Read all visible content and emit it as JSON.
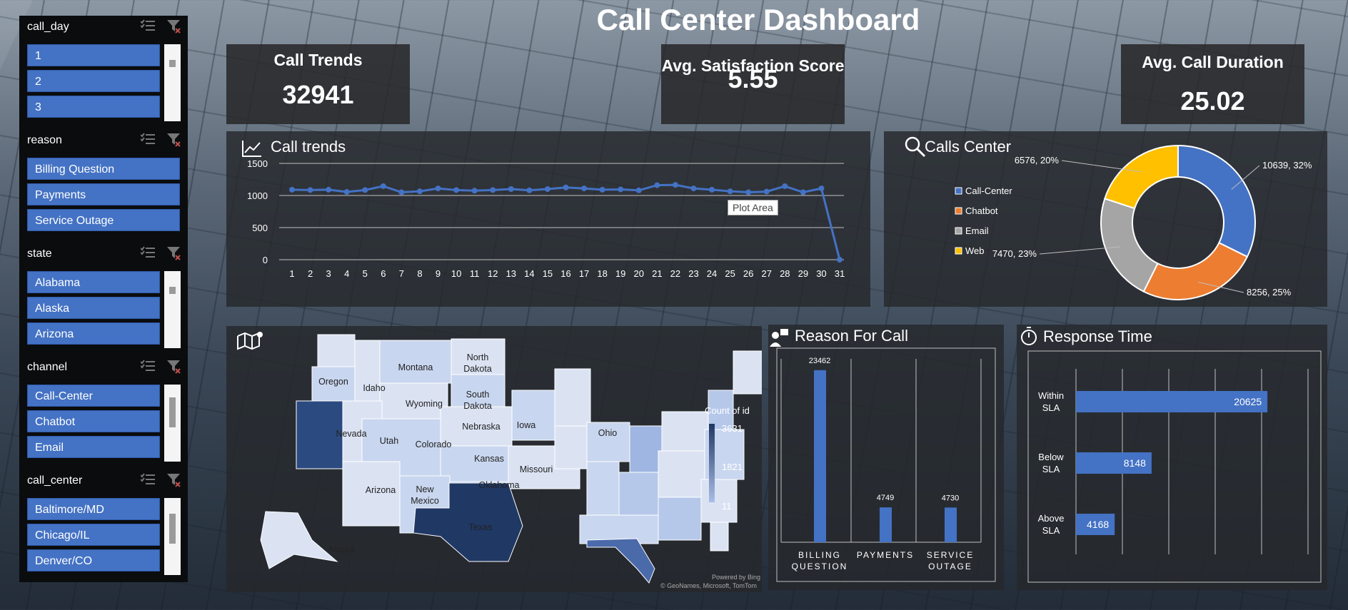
{
  "title": "Call Center Dashboard",
  "slicers": [
    {
      "name": "call_day",
      "items": [
        "1",
        "2",
        "3"
      ]
    },
    {
      "name": "reason",
      "items": [
        "Billing Question",
        "Payments",
        "Service Outage"
      ]
    },
    {
      "name": "state",
      "items": [
        "Alabama",
        "Alaska",
        "Arizona"
      ]
    },
    {
      "name": "channel",
      "items": [
        "Call-Center",
        "Chatbot",
        "Email"
      ]
    },
    {
      "name": "call_center",
      "items": [
        "Baltimore/MD",
        "Chicago/IL",
        "Denver/CO"
      ]
    }
  ],
  "kpis": {
    "call_trends": {
      "title": "Call Trends",
      "value": "32941"
    },
    "satisfaction": {
      "title": "Avg. Satisfaction Score",
      "value": "5.55"
    },
    "duration": {
      "title": "Avg. Call Duration",
      "value": "25.02"
    }
  },
  "line_panel": {
    "title": "Call trends",
    "tooltip": "Plot Area"
  },
  "donut_panel": {
    "title": "Calls Center"
  },
  "map_panel": {
    "legend_title": "Count of id",
    "legend_max": "3631",
    "legend_mid": "1821",
    "legend_min": "11",
    "credit1": "Powered by Bing",
    "credit2": "© GeoNames, Microsoft, TomTom",
    "labels": [
      "Oregon",
      "Idaho",
      "Montana",
      "North Dakota",
      "South Dakota",
      "Wyoming",
      "Nevada",
      "Utah",
      "Colorado",
      "Nebraska",
      "Iowa",
      "Ohio",
      "Kansas",
      "Missouri",
      "Arizona",
      "New Mexico",
      "Oklahoma",
      "Texas",
      "Alaska"
    ]
  },
  "reason_panel": {
    "title": "Reason For Call"
  },
  "response_panel": {
    "title": "Response Time"
  },
  "colors": {
    "accent": "#4472c4",
    "orange": "#ed7d31",
    "gray": "#a5a5a5",
    "yellow": "#ffc000"
  },
  "chart_data": [
    {
      "type": "line",
      "x": [
        1,
        2,
        3,
        4,
        5,
        6,
        7,
        8,
        9,
        10,
        11,
        12,
        13,
        14,
        15,
        16,
        17,
        18,
        19,
        20,
        21,
        22,
        23,
        24,
        25,
        26,
        27,
        28,
        29,
        30,
        31
      ],
      "series": [
        {
          "values": [
            1090,
            1085,
            1090,
            1055,
            1085,
            1145,
            1050,
            1065,
            1110,
            1085,
            1075,
            1085,
            1100,
            1080,
            1100,
            1125,
            1110,
            1090,
            1095,
            1080,
            1160,
            1165,
            1110,
            1090,
            1065,
            1050,
            1060,
            1145,
            1050,
            1110,
            0
          ]
        }
      ],
      "ylim": [
        0,
        1500
      ],
      "yticks": [
        0,
        500,
        1000,
        1500
      ],
      "grid": true
    },
    {
      "type": "pie",
      "donut": true,
      "labels": [
        "Call-Center",
        "Chatbot",
        "Email",
        "Web"
      ],
      "values": [
        10639,
        8256,
        7470,
        6576
      ],
      "data_labels": [
        "10639, 32%",
        "8256, 25%",
        "7470, 23%",
        "6576, 20%"
      ],
      "legend": "left"
    },
    {
      "type": "bar",
      "categories": [
        "BILLING QUESTION",
        "PAYMENTS",
        "SERVICE OUTAGE"
      ],
      "values": [
        23462,
        4749,
        4730
      ],
      "orientation": "vertical"
    },
    {
      "type": "bar",
      "categories": [
        "Within SLA",
        "Below SLA",
        "Above SLA"
      ],
      "values": [
        20625,
        8148,
        4168
      ],
      "orientation": "horizontal"
    }
  ]
}
